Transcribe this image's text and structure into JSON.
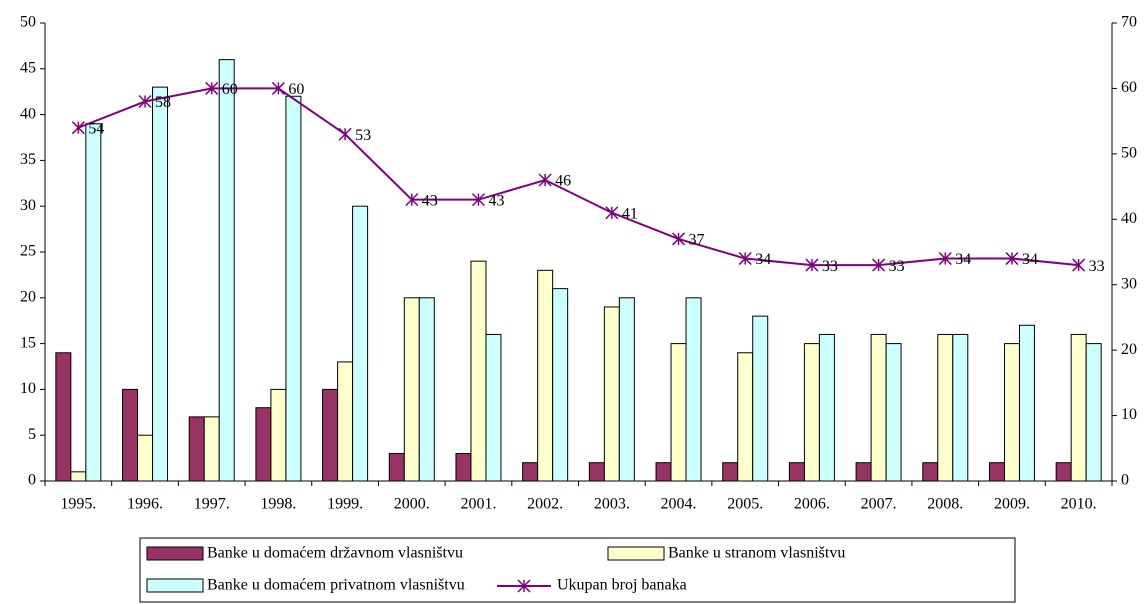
{
  "chart_data": {
    "type": "bar",
    "categories": [
      "1995.",
      "1996.",
      "1997.",
      "1998.",
      "1999.",
      "2000.",
      "2001.",
      "2002.",
      "2003.",
      "2004.",
      "2005.",
      "2006.",
      "2007.",
      "2008.",
      "2009.",
      "2010."
    ],
    "series": [
      {
        "name": "Banke u domaćem državnom vlasništvu",
        "color": "#993366",
        "values": [
          14,
          10,
          7,
          8,
          10,
          3,
          3,
          2,
          2,
          2,
          2,
          2,
          2,
          2,
          2,
          2
        ]
      },
      {
        "name": "Banke  u stranom vlasništvu",
        "color": "#ffffcc",
        "values": [
          1,
          5,
          7,
          10,
          13,
          20,
          24,
          23,
          19,
          15,
          14,
          15,
          16,
          16,
          15,
          16
        ]
      },
      {
        "name": "Banke u domaćem privatnom vlasništvu",
        "color": "#ccffff",
        "values": [
          39,
          43,
          46,
          42,
          30,
          20,
          16,
          21,
          20,
          20,
          18,
          16,
          15,
          16,
          17,
          15
        ]
      },
      {
        "name": "Ukupan broj banaka",
        "color": "#800080",
        "type": "line",
        "axis": "y2",
        "values": [
          54,
          58,
          60,
          60,
          53,
          43,
          43,
          46,
          41,
          37,
          34,
          33,
          33,
          34,
          34,
          33
        ]
      }
    ],
    "ylim": [
      0,
      50
    ],
    "yticks": [
      0,
      5,
      10,
      15,
      20,
      25,
      30,
      35,
      40,
      45,
      50
    ],
    "y2lim": [
      0,
      70
    ],
    "y2ticks": [
      0,
      10,
      20,
      30,
      40,
      50,
      60,
      70
    ],
    "grid": false,
    "legend": "bottom"
  }
}
